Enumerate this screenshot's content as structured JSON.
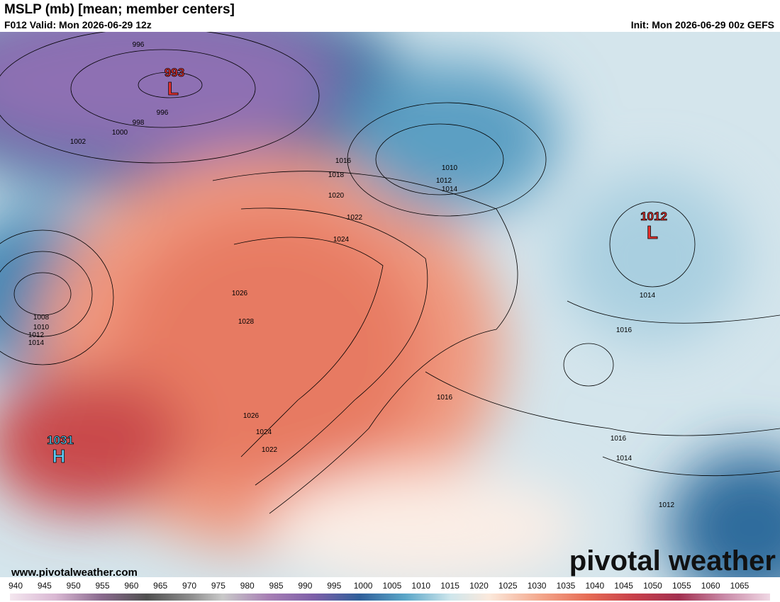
{
  "header": {
    "title": "MSLP (mb) [mean; member centers]",
    "valid": "F012 Valid: Mon 2026-06-29 12z",
    "init": "Init: Mon 2026-06-29 00z GEFS"
  },
  "map": {
    "centers": [
      {
        "value": "993",
        "symbol": "L"
      },
      {
        "value": "1012",
        "symbol": "L"
      },
      {
        "value": "1031",
        "symbol": "H"
      }
    ],
    "isobar_labels": [
      "996",
      "996",
      "998",
      "1000",
      "1002",
      "1016",
      "1018",
      "1020",
      "1022",
      "1024",
      "1026",
      "1028",
      "1026",
      "1024",
      "1022",
      "1008",
      "1010",
      "1012",
      "1014",
      "1010",
      "1012",
      "1014",
      "1014",
      "1016",
      "1016",
      "1016",
      "1014",
      "1012"
    ]
  },
  "watermark": "www.pivotalweather.com",
  "brand": "pivotal weather",
  "colorbar": {
    "ticks": [
      "940",
      "945",
      "950",
      "955",
      "960",
      "965",
      "970",
      "975",
      "980",
      "985",
      "990",
      "995",
      "1000",
      "1005",
      "1010",
      "1015",
      "1020",
      "1025",
      "1030",
      "1035",
      "1040",
      "1045",
      "1050",
      "1055",
      "1060",
      "1065"
    ]
  }
}
